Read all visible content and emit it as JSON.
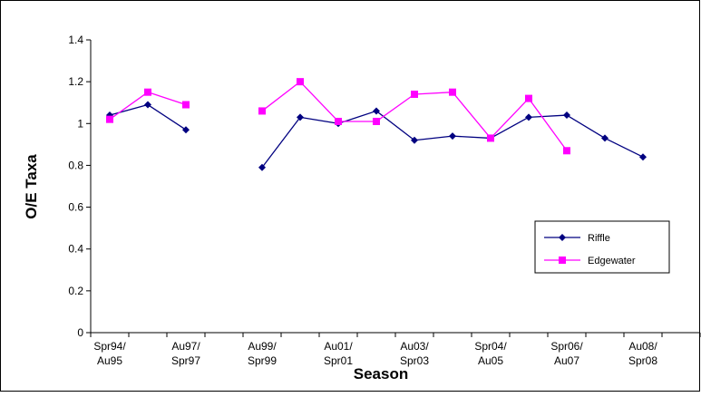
{
  "chart_data": {
    "type": "line",
    "xlabel": "Season",
    "ylabel": "O/E Taxa",
    "ylim": [
      0,
      1.4
    ],
    "yticks": [
      "0",
      "0.2",
      "0.4",
      "0.6",
      "0.8",
      "1",
      "1.2",
      "1.4"
    ],
    "grid": false,
    "legend_position": "lower-right",
    "category_count": 16,
    "x_tick_labels": [
      {
        "index": 0,
        "line1": "Spr94/",
        "line2": "Au95"
      },
      {
        "index": 2,
        "line1": "Au97/",
        "line2": "Spr97"
      },
      {
        "index": 4,
        "line1": "Au99/",
        "line2": "Spr99"
      },
      {
        "index": 6,
        "line1": "Au01/",
        "line2": "Spr01"
      },
      {
        "index": 8,
        "line1": "Au03/",
        "line2": "Spr03"
      },
      {
        "index": 10,
        "line1": "Spr04/",
        "line2": "Au05"
      },
      {
        "index": 12,
        "line1": "Spr06/",
        "line2": "Au07"
      },
      {
        "index": 14,
        "line1": "Au08/",
        "line2": "Spr08"
      }
    ],
    "series": [
      {
        "name": "Riffle",
        "color": "#000080",
        "marker": "diamond",
        "points": [
          [
            0,
            1.04
          ],
          [
            1,
            1.09
          ],
          [
            2,
            0.97
          ],
          [
            4,
            0.79
          ],
          [
            5,
            1.03
          ],
          [
            6,
            1.0
          ],
          [
            7,
            1.06
          ],
          [
            8,
            0.92
          ],
          [
            9,
            0.94
          ],
          [
            10,
            0.93
          ],
          [
            11,
            1.03
          ],
          [
            12,
            1.04
          ],
          [
            13,
            0.93
          ],
          [
            14,
            0.84
          ]
        ]
      },
      {
        "name": "Edgewater",
        "color": "#ff00ff",
        "marker": "square",
        "points": [
          [
            0,
            1.02
          ],
          [
            1,
            1.15
          ],
          [
            2,
            1.09
          ],
          [
            4,
            1.06
          ],
          [
            5,
            1.2
          ],
          [
            6,
            1.01
          ],
          [
            7,
            1.01
          ],
          [
            8,
            1.14
          ],
          [
            9,
            1.15
          ],
          [
            10,
            0.93
          ],
          [
            11,
            1.12
          ],
          [
            12,
            0.87
          ]
        ]
      }
    ]
  }
}
